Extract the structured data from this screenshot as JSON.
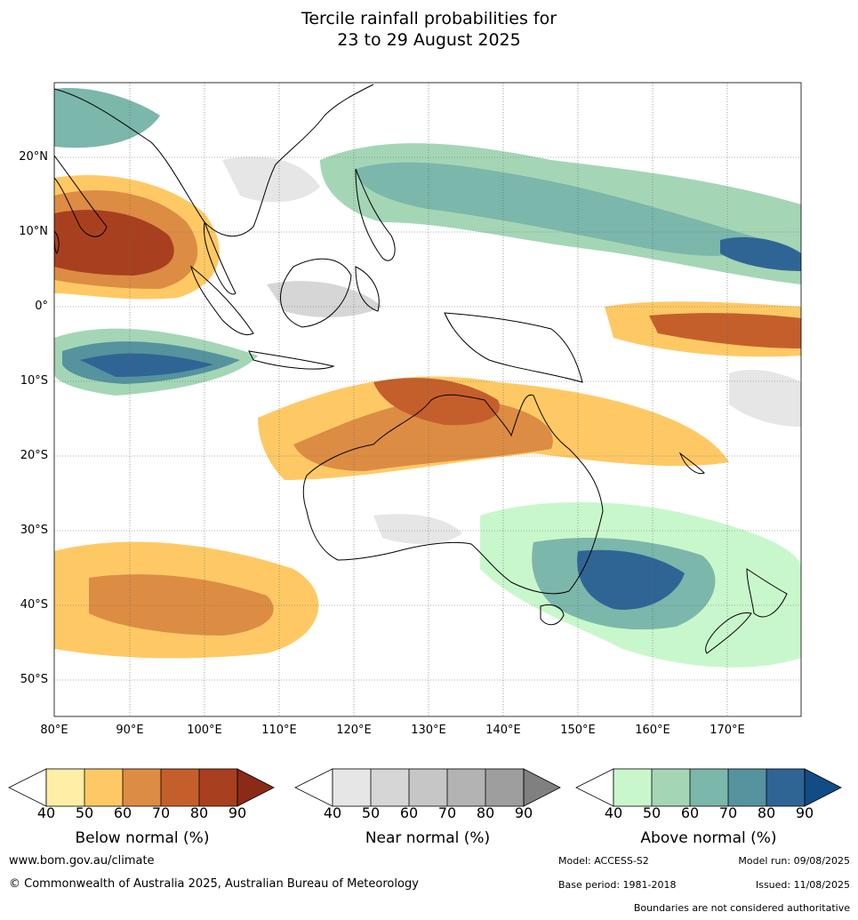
{
  "title_line1": "Tercile rainfall probabilities for",
  "title_line2": "23 to 29 August 2025",
  "lat_ticks": [
    "20°N",
    "10°N",
    "0°",
    "10°S",
    "20°S",
    "30°S",
    "40°S",
    "50°S"
  ],
  "lon_ticks": [
    "80°E",
    "90°E",
    "100°E",
    "110°E",
    "120°E",
    "130°E",
    "140°E",
    "150°E",
    "160°E",
    "170°E"
  ],
  "colorbars": [
    {
      "label": "Below normal (%)",
      "ticks": [
        "40",
        "50",
        "60",
        "70",
        "80",
        "90"
      ],
      "colors": [
        "#ffeea6",
        "#fec965",
        "#dd8c43",
        "#c45f2c",
        "#a8401f",
        "#8a2a17"
      ]
    },
    {
      "label": "Near normal (%)",
      "ticks": [
        "40",
        "50",
        "60",
        "70",
        "80",
        "90"
      ],
      "colors": [
        "#e6e6e6",
        "#d6d6d6",
        "#c6c6c6",
        "#b3b3b3",
        "#9e9e9e",
        "#808080"
      ]
    },
    {
      "label": "Above normal (%)",
      "ticks": [
        "40",
        "50",
        "60",
        "70",
        "80",
        "90"
      ],
      "colors": [
        "#c9f7cc",
        "#a4d6b6",
        "#7bb7ab",
        "#55939e",
        "#2f6594",
        "#124c86"
      ]
    }
  ],
  "footer": {
    "website": "www.bom.gov.au/climate",
    "copyright": "© Commonwealth of Australia 2025, Australian Bureau of Meteorology",
    "model": "Model: ACCESS-S2",
    "model_run": "Model run: 09/08/2025",
    "base_period": "Base period: 1981-2018",
    "issued": "Issued: 11/08/2025",
    "disclaimer": "Boundaries are not considered authoritative"
  }
}
